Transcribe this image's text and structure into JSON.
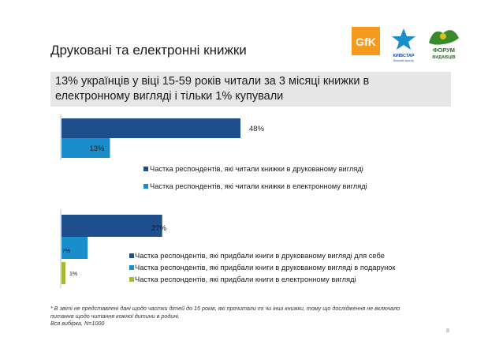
{
  "title": "Друковані та електронні книжки",
  "subtitle": "13% українців у віці 15-59 років читали за 3 місяці книжки в електронному вигляді і тільки 1% купували",
  "logos": {
    "gfk": "GfK",
    "kyivstar": "КИЇВСТАР",
    "kyivstar_sub": "Вільний простір",
    "forum_line1": "ФОРУМ",
    "forum_line2": "ВИДАВЦІВ"
  },
  "colors": {
    "dark_blue": "#1f4e8c",
    "light_blue": "#1a8dcc",
    "olive": "#a8b832"
  },
  "chart_data": [
    {
      "type": "bar",
      "orientation": "horizontal",
      "series": [
        {
          "name": "Частка респондентів, які читали книжки в друкованому вигляді",
          "values": [
            48
          ],
          "label": "48%",
          "color": "#1f4e8c"
        },
        {
          "name": "Частка респондентів, які читали книжки в електронному вигляді",
          "values": [
            13
          ],
          "label": "13%",
          "color": "#1a8dcc"
        }
      ],
      "xlim": [
        0,
        100
      ],
      "legend_position": "bottom"
    },
    {
      "type": "bar",
      "orientation": "horizontal",
      "series": [
        {
          "name": "Частка респондентів, які придбали книги в друкованому вигляді для себе",
          "values": [
            27
          ],
          "label": "27%",
          "color": "#1f4e8c"
        },
        {
          "name": "Частка респондентів, які придбали книги в друкованому вигляді в подарунок",
          "values": [
            7
          ],
          "label": "7%",
          "color": "#1a8dcc"
        },
        {
          "name": "Частка респондентів, які придбали книги в електронному вигляді",
          "values": [
            1
          ],
          "label": "1%",
          "color": "#a8b832"
        }
      ],
      "xlim": [
        0,
        100
      ],
      "legend_position": "right"
    }
  ],
  "footnote": {
    "line1": "* В звіті не представлені дані щодо частки дітей до 15 років, які прочитали ті чи інші книжки, тому що дослідження не включало",
    "line2": "питання щодо читання кожної дитини в родині.",
    "line3": "Вся вибірка, N=1000"
  },
  "page_number": "8"
}
